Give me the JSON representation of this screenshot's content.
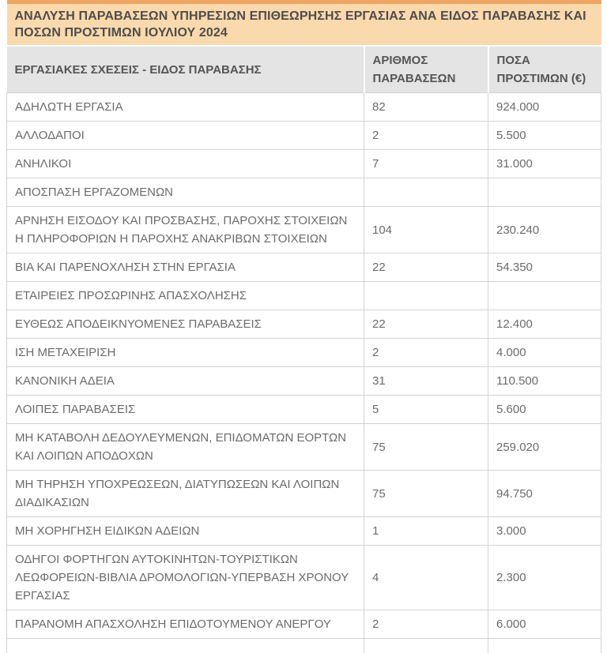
{
  "table": {
    "title": "ΑΝΑΛΥΣΗ ΠΑΡΑΒΑΣΕΩΝ ΥΠΗΡΕΣΙΩΝ ΕΠΙΘΕΩΡΗΣΗΣ ΕΡΓΑΣΙΑΣ ΑΝΑ ΕΙΔΟΣ ΠΑΡΑΒΑΣΗΣ ΚΑΙ ΠΟΣΩΝ ΠΡΟΣΤΙΜΩΝ ΙΟΥΛΙΟΥ 2024",
    "columns": [
      "ΕΡΓΑΣΙΑΚΕΣ ΣΧΕΣΕΙΣ - ΕΙΔΟΣ ΠΑΡΑΒΑΣΗΣ",
      "ΑΡΙΘΜΟΣ ΠΑΡΑΒΑΣΕΩΝ",
      "ΠΟΣΑ ΠΡΟΣΤΙΜΩΝ (€)"
    ],
    "rows": [
      {
        "violation": "ΑΔΗΛΩΤΗ ΕΡΓΑΣΙΑ",
        "count": "82",
        "fines": "924.000"
      },
      {
        "violation": "ΑΛΛΟΔΑΠΟΙ",
        "count": "2",
        "fines": "5.500"
      },
      {
        "violation": "ΑΝΗΛΙΚΟΙ",
        "count": "7",
        "fines": "31.000"
      },
      {
        "violation": "ΑΠΟΣΠΑΣΗ ΕΡΓΑΖΟΜΕΝΩΝ",
        "count": "",
        "fines": ""
      },
      {
        "violation": "ΑΡΝΗΣΗ ΕΙΣΟΔΟΥ ΚΑΙ ΠΡΟΣΒΑΣΗΣ, ΠΑΡΟΧΗΣ ΣΤΟΙΧΕΙΩΝ Η ΠΛΗΡΟΦΟΡΙΩΝ Η ΠΑΡΟΧΗΣ ΑΝΑΚΡΙΒΩΝ ΣΤΟΙΧΕΙΩΝ",
        "count": "104",
        "fines": "230.240"
      },
      {
        "violation": "ΒΙΑ ΚΑΙ ΠΑΡΕΝΟΧΛΗΣΗ ΣΤΗΝ ΕΡΓΑΣΙΑ",
        "count": "22",
        "fines": "54.350"
      },
      {
        "violation": "ΕΤΑΙΡΕΙΕΣ ΠΡΟΣΩΡΙΝΗΣ ΑΠΑΣΧΟΛΗΣΗΣ",
        "count": "",
        "fines": ""
      },
      {
        "violation": "ΕΥΘΕΩΣ ΑΠΟΔΕΙΚΝΥΟΜΕΝΕΣ ΠΑΡΑΒΑΣΕΙΣ",
        "count": "22",
        "fines": "12.400"
      },
      {
        "violation": "ΙΣΗ ΜΕΤΑΧΕΙΡΙΣΗ",
        "count": "2",
        "fines": "4.000"
      },
      {
        "violation": "ΚΑΝΟΝΙΚΗ ΑΔΕΙΑ",
        "count": "31",
        "fines": "110.500"
      },
      {
        "violation": "ΛΟΙΠΕΣ ΠΑΡΑΒΑΣΕΙΣ",
        "count": "5",
        "fines": "5.600"
      },
      {
        "violation": "ΜΗ ΚΑΤΑΒΟΛΗ ΔΕΔΟΥΛΕΥΜΕΝΩΝ, ΕΠΙΔΟΜΑΤΩΝ ΕΟΡΤΩΝ ΚΑΙ ΛΟΙΠΩΝ ΑΠΟΔΟΧΩΝ",
        "count": "75",
        "fines": "259.020"
      },
      {
        "violation": "ΜΗ ΤΗΡΗΣΗ ΥΠΟΧΡΕΩΣΕΩΝ, ΔΙΑΤΥΠΩΣΕΩΝ ΚΑΙ ΛΟΙΠΩΝ ΔΙΑΔΙΚΑΣΙΩΝ",
        "count": "75",
        "fines": "94.750"
      },
      {
        "violation": "ΜΗ ΧΟΡΗΓΗΣΗ ΕΙΔΙΚΩΝ ΑΔΕΙΩΝ",
        "count": "1",
        "fines": "3.000"
      },
      {
        "violation": "ΟΔΗΓΟΙ ΦΟΡΤΗΓΩΝ ΑΥΤΟΚΙΝΗΤΩΝ-ΤΟΥΡΙΣΤΙΚΩΝ ΛΕΩΦΟΡΕΙΩΝ-ΒΙΒΛΙΑ ΔΡΟΜΟΛΟΓΙΩΝ-ΥΠΕΡΒΑΣΗ ΧΡΟΝΟΥ ΕΡΓΑΣΙΑΣ",
        "count": "4",
        "fines": "2.300"
      },
      {
        "violation": "ΠΑΡΑΝΟΜΗ ΑΠΑΣΧΟΛΗΣΗ ΕΠΙΔΟΤΟΥΜΕΝΟΥ ΑΝΕΡΓΟΥ",
        "count": "2",
        "fines": "6.000"
      }
    ],
    "colors": {
      "page_background": "#ffffff",
      "title_background": "#fad9ad",
      "title_top_border": "#f0a662",
      "title_text": "#4d4d4d",
      "header_background": "#e4e4e4",
      "header_text": "#555555",
      "body_text": "#6b6b6b",
      "row_border": "#d3d3d3",
      "header_separator": "#ffffff"
    }
  }
}
